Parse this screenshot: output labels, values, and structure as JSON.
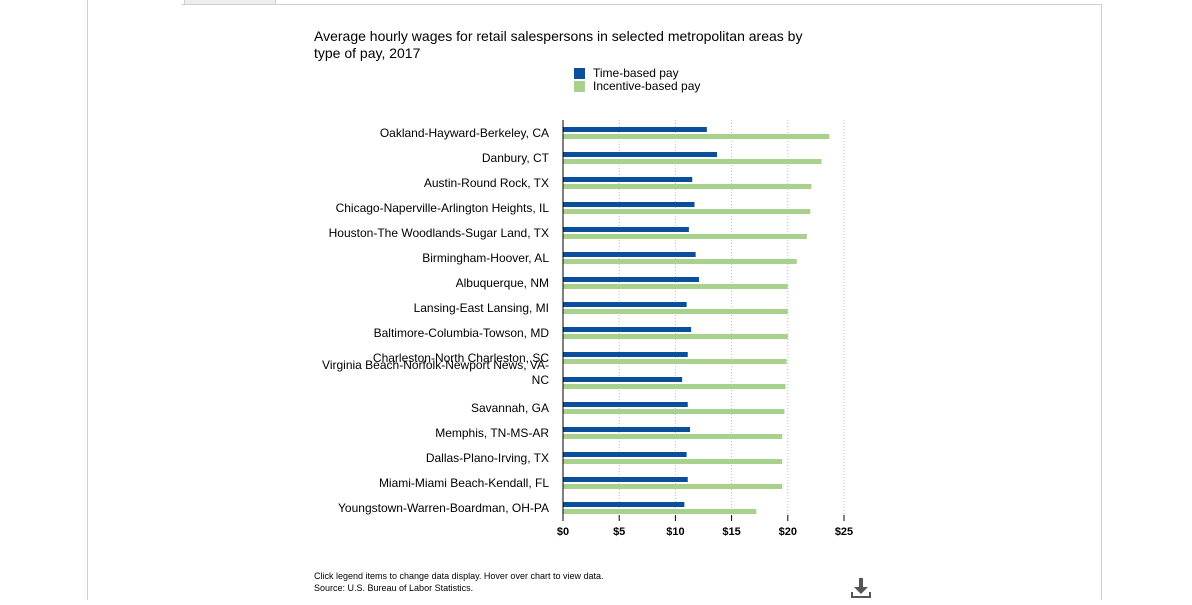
{
  "chart_data": {
    "type": "bar",
    "orientation": "horizontal",
    "title": "Average hourly wages for retail salespersons in selected metropolitan areas by type of pay, 2017",
    "categories": [
      "Oakland-Hayward-Berkeley, CA",
      "Danbury, CT",
      "Austin-Round Rock, TX",
      "Chicago-Naperville-Arlington Heights, IL",
      "Houston-The Woodlands-Sugar Land, TX",
      "Birmingham-Hoover, AL",
      "Albuquerque, NM",
      "Lansing-East Lansing, MI",
      "Baltimore-Columbia-Towson, MD",
      "Charleston-North Charleston, SC",
      "Virginia Beach-Norfolk-Newport News, VA-NC",
      "Savannah, GA",
      "Memphis, TN-MS-AR",
      "Dallas-Plano-Irving, TX",
      "Miami-Miami Beach-Kendall, FL",
      "Youngstown-Warren-Boardman, OH-PA"
    ],
    "series": [
      {
        "name": "Time-based pay",
        "color": "#0b4f9c",
        "values": [
          12.8,
          13.7,
          11.5,
          11.7,
          11.2,
          11.8,
          12.1,
          11.0,
          11.4,
          11.1,
          10.6,
          11.1,
          11.3,
          11.0,
          11.1,
          10.8
        ]
      },
      {
        "name": "Incentive-based pay",
        "color": "#a9d18e",
        "values": [
          23.7,
          23.0,
          22.1,
          22.0,
          21.7,
          20.8,
          20.0,
          20.0,
          20.0,
          19.9,
          19.8,
          19.7,
          19.5,
          19.5,
          19.5,
          17.2
        ]
      }
    ],
    "xlim": [
      0,
      25
    ],
    "x_ticks": [
      "$0",
      "$5",
      "$10",
      "$15",
      "$20",
      "$25"
    ],
    "x_tick_values": [
      0,
      5,
      10,
      15,
      20,
      25
    ],
    "grid": "vertical-dotted",
    "legend_position": "top"
  },
  "footnote": {
    "line1": "Click legend items to change data display. Hover over chart to view data.",
    "line2": "Source: U.S. Bureau of Labor Statistics."
  },
  "icons": {
    "download": "download-icon"
  }
}
